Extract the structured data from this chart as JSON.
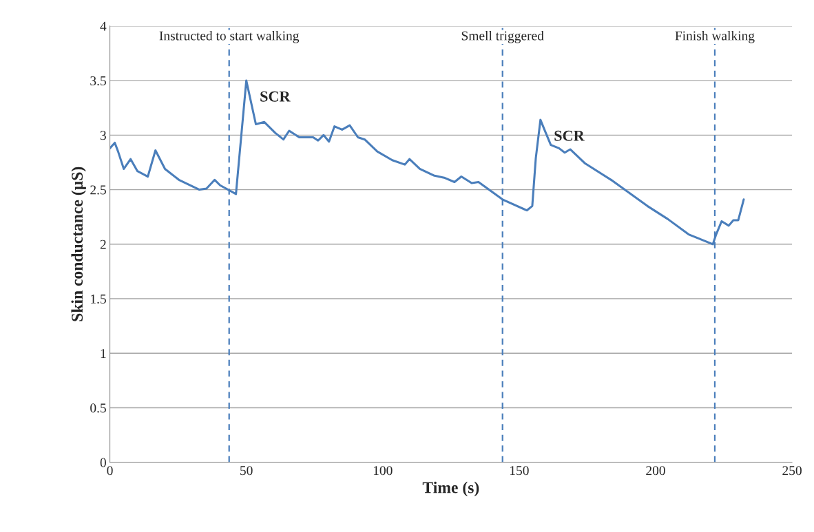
{
  "chart_data": {
    "type": "line",
    "xlabel": "Time (s)",
    "ylabel": "Skin conductance (µS)",
    "xlim": [
      0,
      250
    ],
    "xticks": [
      0,
      50,
      100,
      150,
      200,
      250
    ],
    "ylim": [
      0,
      4
    ],
    "yticks": [
      0,
      0.5,
      1,
      1.5,
      2,
      2.5,
      3,
      3.5,
      4
    ],
    "grid": "y",
    "line_style": "solid",
    "series": [
      {
        "color": "#4a7ebb",
        "x": [
          0,
          1.8,
          3,
          5.1,
          7.6,
          10.1,
          13.9,
          16.7,
          20.2,
          25.3,
          32.8,
          35.4,
          38.4,
          40.4,
          46.2,
          50,
          53.5,
          56.6,
          60.6,
          63.6,
          65.7,
          69.4,
          74.5,
          76.3,
          78.3,
          80.3,
          82.3,
          85.1,
          87.9,
          90.9,
          93.4,
          98,
          103.5,
          108.1,
          109.8,
          113.6,
          118.7,
          122.5,
          126.3,
          128.8,
          132.6,
          135.1,
          143.9,
          152.8,
          154.8,
          156.1,
          157.8,
          159.6,
          161.6,
          164.6,
          166.7,
          168.7,
          174.2,
          184.3,
          197,
          204.5,
          212.1,
          221,
          222.2,
          224.2,
          226.8,
          228.5,
          230.3,
          232.3
        ],
        "values": [
          2.88,
          2.93,
          2.85,
          2.69,
          2.78,
          2.67,
          2.62,
          2.86,
          2.69,
          2.59,
          2.5,
          2.51,
          2.59,
          2.54,
          2.46,
          3.5,
          3.1,
          3.12,
          3.02,
          2.96,
          3.04,
          2.98,
          2.98,
          2.95,
          3.0,
          2.94,
          3.08,
          3.05,
          3.09,
          2.98,
          2.96,
          2.85,
          2.77,
          2.73,
          2.78,
          2.69,
          2.63,
          2.61,
          2.57,
          2.62,
          2.56,
          2.57,
          2.41,
          2.31,
          2.35,
          2.79,
          3.14,
          3.03,
          2.91,
          2.88,
          2.84,
          2.87,
          2.74,
          2.58,
          2.35,
          2.23,
          2.09,
          2.0,
          2.09,
          2.21,
          2.17,
          2.22,
          2.22,
          2.41
        ]
      }
    ],
    "ref_lines": [
      {
        "axis": "x",
        "value": 43.7,
        "label": "Instructed to start walking",
        "color": "#4a7ebb",
        "line_style": "dashed"
      },
      {
        "axis": "x",
        "value": 143.9,
        "label": "Smell triggered",
        "color": "#4a7ebb",
        "line_style": "dashed"
      },
      {
        "axis": "x",
        "value": 221.7,
        "label": "Finish walking",
        "color": "#4a7ebb",
        "line_style": "dashed"
      }
    ],
    "annotations": [
      {
        "text": "SCR",
        "x": 50,
        "y": 3.5
      },
      {
        "text": "SCR",
        "x": 157.8,
        "y": 3.14
      }
    ]
  }
}
